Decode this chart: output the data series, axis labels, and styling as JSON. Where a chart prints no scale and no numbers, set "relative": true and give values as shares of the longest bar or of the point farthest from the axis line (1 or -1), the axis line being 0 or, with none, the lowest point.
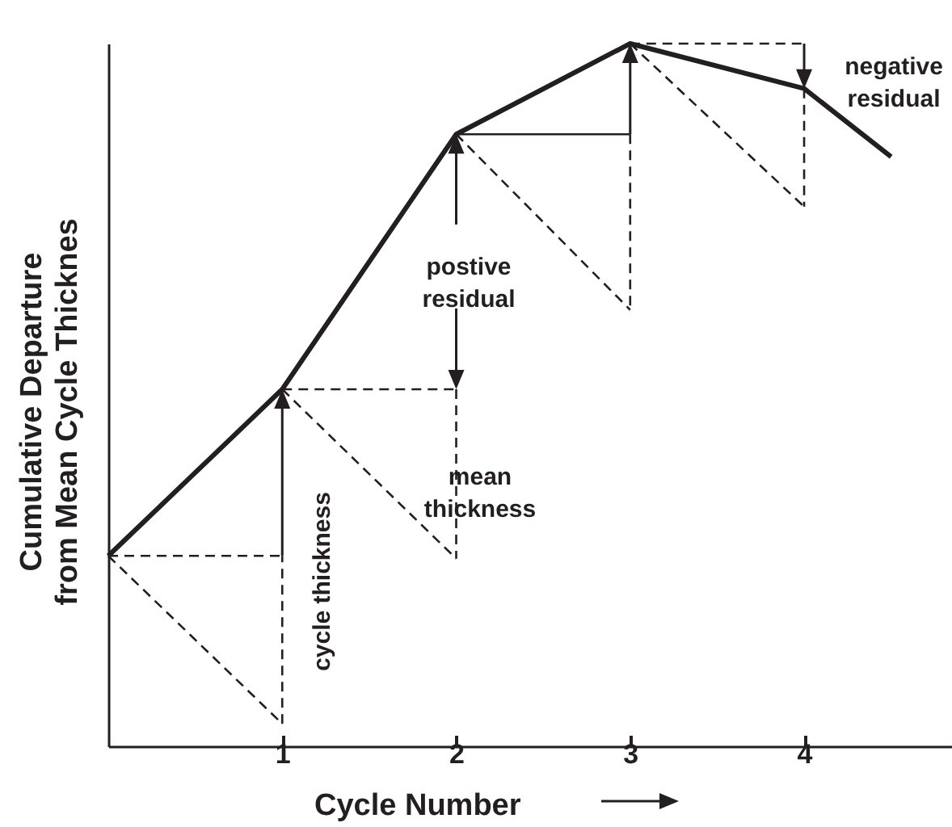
{
  "chart_data": {
    "type": "line",
    "relative": true,
    "xlabel": "Cycle Number",
    "ylabel": "Cumulative Departure from Mean Cycle Thicknes",
    "xlim": [
      0,
      4.85
    ],
    "xticks": [
      1,
      2,
      3,
      4
    ],
    "grid": false,
    "tick_labels": "x",
    "series": [
      {
        "color": "#231f20",
        "line_style": "solid",
        "x": [
          0,
          1,
          2,
          3,
          4,
          4.5
        ],
        "values": [
          0.271,
          0.508,
          0.871,
          1,
          0.936,
          0.839
        ]
      },
      {
        "color": "#231f20",
        "line_style": "dashed",
        "x": [
          0,
          1
        ],
        "values": [
          0.271,
          0.032
        ]
      },
      {
        "color": "#231f20",
        "line_style": "dashed",
        "x": [
          1,
          2
        ],
        "values": [
          0.508,
          0.267
        ]
      },
      {
        "color": "#231f20",
        "line_style": "dashed",
        "x": [
          2,
          3
        ],
        "values": [
          0.871,
          0.621
        ]
      },
      {
        "color": "#231f20",
        "line_style": "dashed",
        "x": [
          3,
          4
        ],
        "values": [
          1,
          0.768
        ]
      },
      {
        "color": "#231f20",
        "line_style": "dashed",
        "x": [
          0,
          1
        ],
        "values": [
          0.271,
          0.271
        ]
      },
      {
        "color": "#231f20",
        "line_style": "dashed",
        "x": [
          1,
          2
        ],
        "values": [
          0.508,
          0.508
        ]
      },
      {
        "color": "#231f20",
        "line_style": "solid",
        "x": [
          2,
          3
        ],
        "values": [
          0.871,
          0.871
        ]
      },
      {
        "color": "#231f20",
        "line_style": "dashed",
        "x": [
          3,
          4
        ],
        "values": [
          1,
          1
        ]
      },
      {
        "color": "#231f20",
        "line_style": "dashed",
        "x": [
          1,
          1
        ],
        "values": [
          0.032,
          0.271
        ]
      },
      {
        "color": "#231f20",
        "line_style": "dashed",
        "x": [
          2,
          2
        ],
        "values": [
          0.508,
          0.267
        ]
      },
      {
        "color": "#231f20",
        "line_style": "dashed",
        "x": [
          3,
          3
        ],
        "values": [
          0.871,
          0.621
        ]
      },
      {
        "color": "#231f20",
        "line_style": "dashed",
        "x": [
          4,
          4
        ],
        "values": [
          0.936,
          0.768
        ]
      }
    ],
    "annotations": [
      "cycle thickness",
      "postive residual",
      "mean thickness",
      "negative residual"
    ]
  }
}
